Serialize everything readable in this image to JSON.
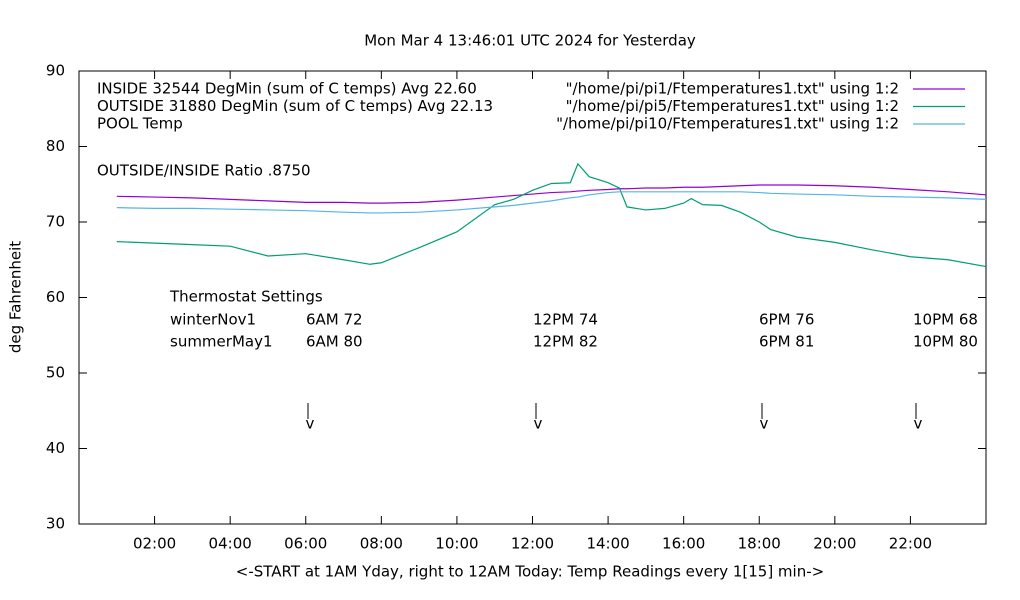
{
  "chart_data": {
    "type": "line",
    "title": "Mon Mar  4 13:46:01 UTC 2024 for Yesterday",
    "x_label": "<-START at 1AM Yday, right to 12AM Today:  Temp Readings every 1[15] min->",
    "y_label": "deg Fahrenheit",
    "xlim": [
      0,
      24
    ],
    "xticks": [
      {
        "value": 2,
        "label": "02:00"
      },
      {
        "value": 4,
        "label": "04:00"
      },
      {
        "value": 6,
        "label": "06:00"
      },
      {
        "value": 8,
        "label": "08:00"
      },
      {
        "value": 10,
        "label": "10:00"
      },
      {
        "value": 12,
        "label": "12:00"
      },
      {
        "value": 14,
        "label": "14:00"
      },
      {
        "value": 16,
        "label": "16:00"
      },
      {
        "value": 18,
        "label": "18:00"
      },
      {
        "value": 20,
        "label": "20:00"
      },
      {
        "value": 22,
        "label": "22:00"
      }
    ],
    "ylim": [
      30,
      90
    ],
    "yticks": [
      30,
      40,
      50,
      60,
      70,
      80,
      90
    ],
    "grid": false,
    "legend": "top-right",
    "x": [
      1,
      2,
      3,
      4,
      5,
      6,
      7,
      7.7,
      8,
      9,
      10,
      11,
      11.5,
      12,
      12.5,
      13,
      13.2,
      13.5,
      14,
      14.3,
      14.5,
      15,
      15.5,
      16,
      16.2,
      16.5,
      17,
      17.5,
      18,
      18.3,
      19,
      20,
      21,
      22,
      23,
      24
    ],
    "series": [
      {
        "name": "INSIDE 32544 DegMin (sum of C temps) Avg 22.60",
        "source": "\"/home/pi/pi1/Ftemperatures1.txt\" using 1:2",
        "color": "#9400d3",
        "values": [
          73.4,
          73.3,
          73.2,
          73.0,
          72.8,
          72.6,
          72.6,
          72.5,
          72.5,
          72.6,
          72.9,
          73.3,
          73.5,
          73.7,
          73.9,
          74.0,
          74.1,
          74.2,
          74.3,
          74.4,
          74.4,
          74.5,
          74.5,
          74.6,
          74.6,
          74.6,
          74.7,
          74.8,
          74.9,
          74.9,
          74.9,
          74.8,
          74.6,
          74.3,
          74.0,
          73.6
        ]
      },
      {
        "name": "OUTSIDE 31880 DegMin (sum of C temps) Avg 22.13",
        "source": "\"/home/pi/pi5/Ftemperatures1.txt\" using 1:2",
        "color": "#009e73",
        "values": [
          67.4,
          67.2,
          67.0,
          66.8,
          65.5,
          65.8,
          65.0,
          64.4,
          64.6,
          66.6,
          68.7,
          72.3,
          73.0,
          74.2,
          75.1,
          75.2,
          77.7,
          76.0,
          75.2,
          74.5,
          72.0,
          71.6,
          71.8,
          72.5,
          73.1,
          72.3,
          72.2,
          71.3,
          70.0,
          69.0,
          68.0,
          67.3,
          66.3,
          65.4,
          65.0,
          64.1
        ]
      },
      {
        "name": "POOL Temp",
        "source": "\"/home/pi/pi10/Ftemperatures1.txt\" using 1:2",
        "color": "#56b4e9",
        "values": [
          71.9,
          71.8,
          71.8,
          71.7,
          71.6,
          71.5,
          71.3,
          71.2,
          71.2,
          71.3,
          71.6,
          72.0,
          72.2,
          72.5,
          72.8,
          73.2,
          73.3,
          73.6,
          73.9,
          74.0,
          74.0,
          74.0,
          74.0,
          74.0,
          74.0,
          74.0,
          74.0,
          74.0,
          73.9,
          73.8,
          73.7,
          73.6,
          73.4,
          73.3,
          73.2,
          73.0
        ]
      }
    ],
    "ratio_note": "OUTSIDE/INSIDE Ratio .8750",
    "thermostat": {
      "title": "Thermostat Settings",
      "rows": [
        [
          "winterNov1",
          "6AM 72",
          "12PM 74",
          "6PM 76",
          "10PM 68"
        ],
        [
          "summerMay1",
          "6AM 80",
          "12PM 82",
          "6PM 81",
          "10PM 80"
        ]
      ],
      "arrow_label": "v"
    }
  }
}
